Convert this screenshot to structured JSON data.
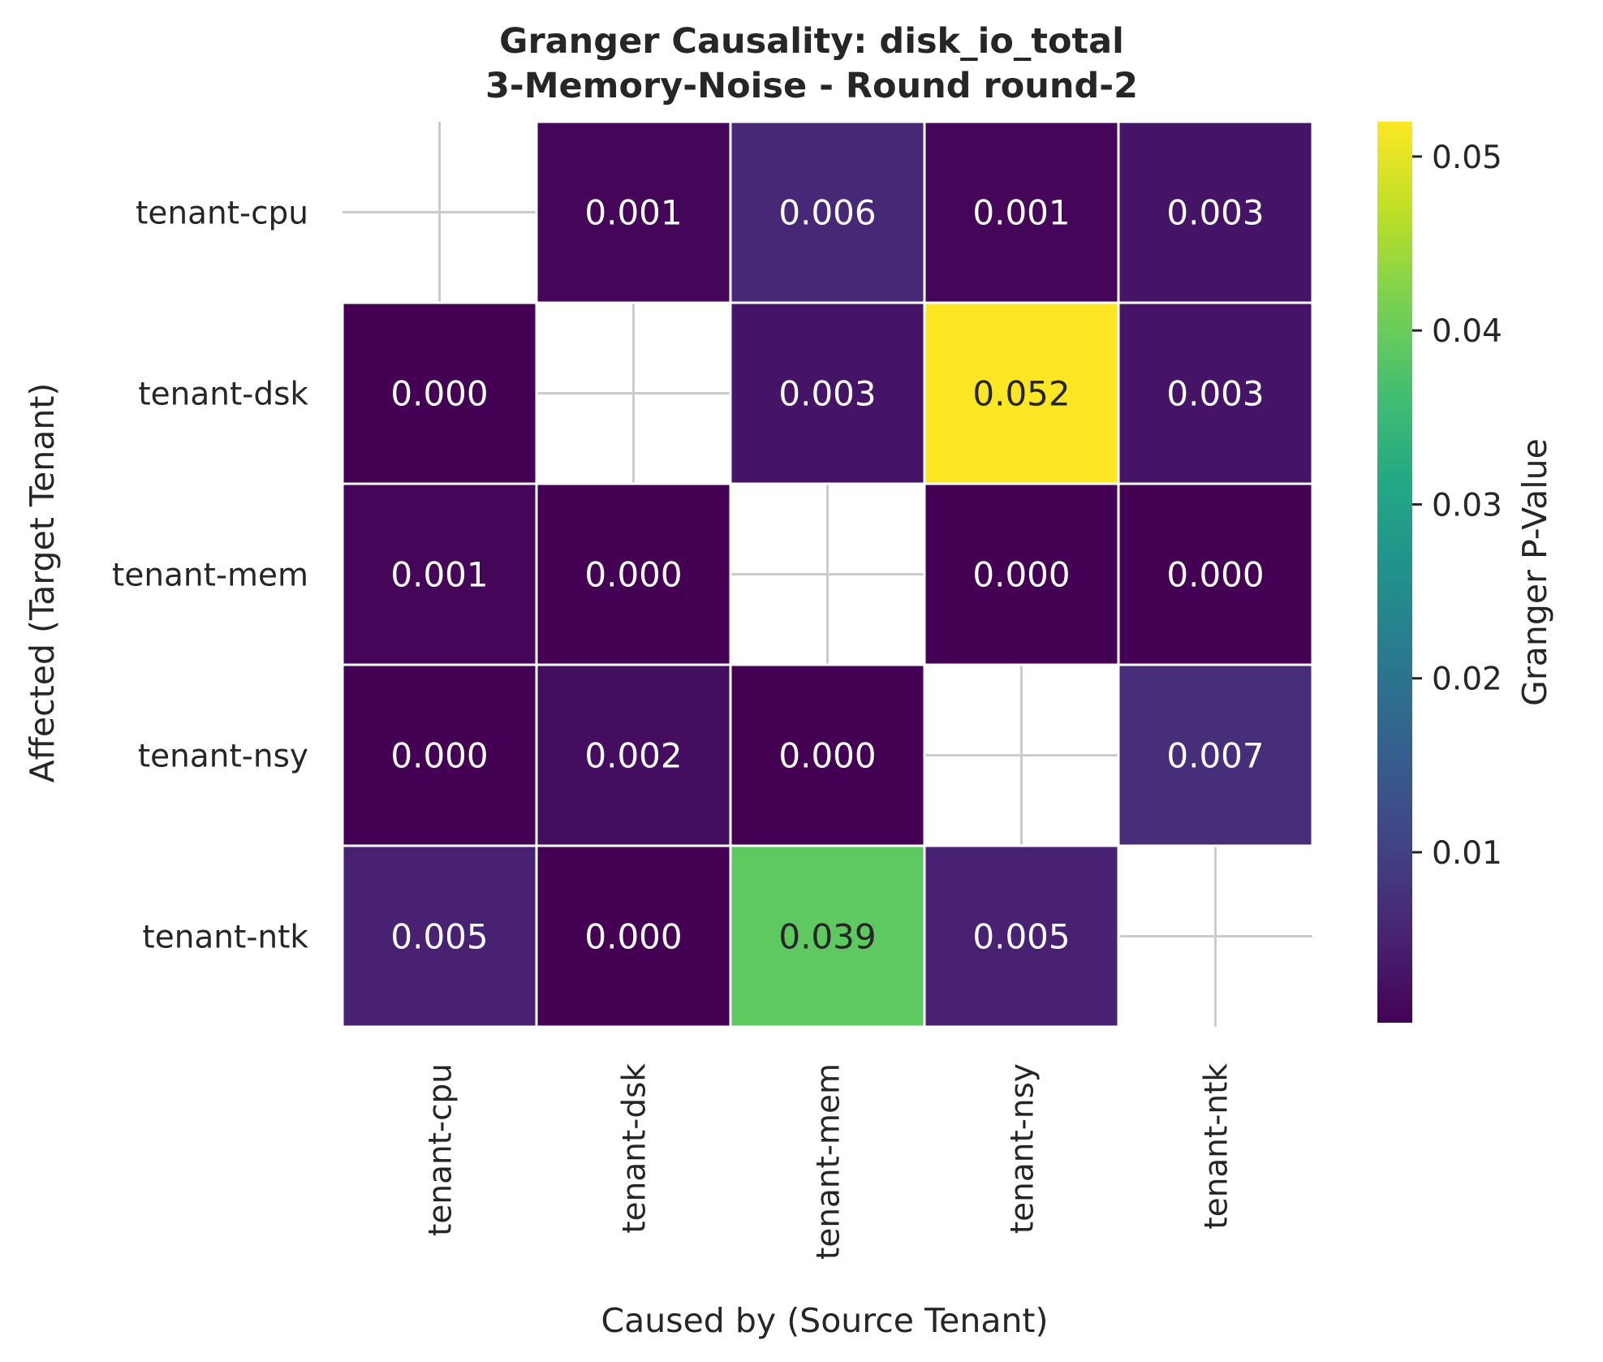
{
  "chart_data": {
    "type": "heatmap",
    "title_lines": [
      "Granger Causality: disk_io_total",
      "3-Memory-Noise - Round round-2"
    ],
    "xlabel": "Caused by (Source Tenant)",
    "ylabel": "Affected (Target Tenant)",
    "x_categories": [
      "tenant-cpu",
      "tenant-dsk",
      "tenant-mem",
      "tenant-nsy",
      "tenant-ntk"
    ],
    "y_categories": [
      "tenant-cpu",
      "tenant-dsk",
      "tenant-mem",
      "tenant-nsy",
      "tenant-ntk"
    ],
    "values": [
      [
        null,
        0.001,
        0.006,
        0.001,
        0.003
      ],
      [
        0.0,
        null,
        0.003,
        0.052,
        0.003
      ],
      [
        0.001,
        0.0,
        null,
        0.0,
        0.0
      ],
      [
        0.0,
        0.002,
        0.0,
        null,
        0.007
      ],
      [
        0.005,
        0.0,
        0.039,
        0.005,
        null
      ]
    ],
    "value_format": "0.000",
    "colormap": "viridis",
    "colorbar": {
      "label": "Granger P-Value",
      "range": [
        0.0002,
        0.052
      ],
      "ticks": [
        0.01,
        0.02,
        0.03,
        0.04,
        0.05
      ],
      "tick_labels": [
        "0.01",
        "0.02",
        "0.03",
        "0.04",
        "0.05"
      ]
    },
    "grid": true
  }
}
